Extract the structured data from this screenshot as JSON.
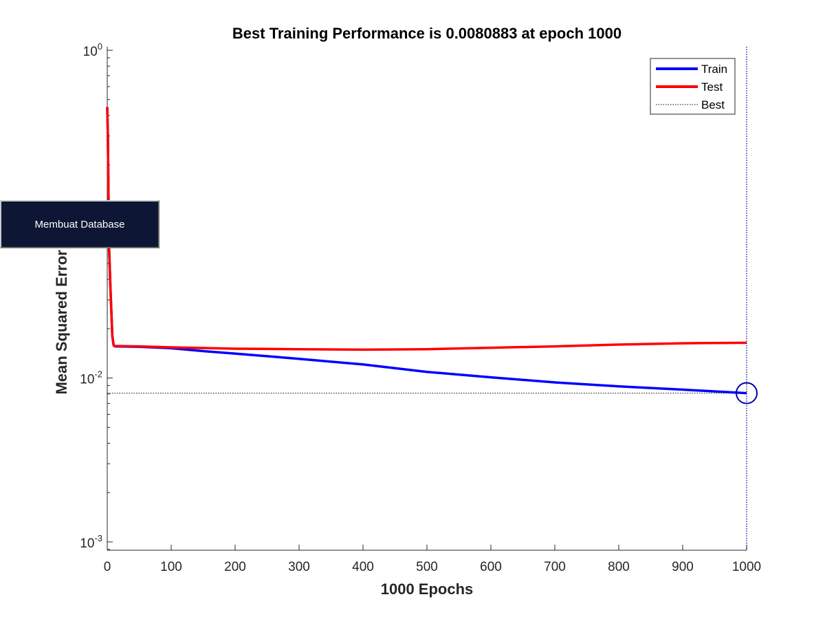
{
  "overlay_button": {
    "label": "Membuat Database"
  },
  "chart_data": {
    "type": "line",
    "title": "Best Training Performance is 0.0080883 at epoch 1000",
    "xlabel": "1000 Epochs",
    "ylabel": "Mean Squared Error (mse)",
    "xlim": [
      0,
      1000
    ],
    "ylim": [
      0.00089,
      1.05
    ],
    "yscale": "log",
    "x_ticks": [
      0,
      100,
      200,
      300,
      400,
      500,
      600,
      700,
      800,
      900,
      1000
    ],
    "y_ticks": [
      {
        "value": 1,
        "base": "10",
        "exp": "0"
      },
      {
        "value": 0.01,
        "base": "10",
        "exp": "-2"
      },
      {
        "value": 0.001,
        "base": "10",
        "exp": "-3"
      }
    ],
    "grid": false,
    "legend_position": "top-right",
    "series": [
      {
        "name": "Train",
        "color": "#0000ff",
        "style": "solid",
        "x": [
          0,
          1,
          2,
          3,
          5,
          8,
          10,
          12,
          50,
          100,
          150,
          200,
          300,
          400,
          500,
          600,
          700,
          800,
          900,
          1000
        ],
        "y": [
          0.45,
          0.3,
          0.12,
          0.06,
          0.035,
          0.018,
          0.0158,
          0.0156,
          0.0155,
          0.0152,
          0.0146,
          0.0141,
          0.0131,
          0.0121,
          0.0109,
          0.0101,
          0.0094,
          0.0089,
          0.0085,
          0.0080883
        ]
      },
      {
        "name": "Test",
        "color": "#ff0000",
        "style": "solid",
        "x": [
          0,
          1,
          2,
          3,
          5,
          8,
          10,
          12,
          50,
          100,
          200,
          300,
          400,
          500,
          600,
          700,
          800,
          900,
          1000
        ],
        "y": [
          0.45,
          0.3,
          0.12,
          0.06,
          0.035,
          0.018,
          0.0158,
          0.0157,
          0.0156,
          0.0154,
          0.0151,
          0.015,
          0.0149,
          0.015,
          0.0153,
          0.0156,
          0.016,
          0.0163,
          0.0164
        ]
      },
      {
        "name": "Best",
        "color": "#000000",
        "style": "dotted",
        "best_epoch": 1000,
        "best_value": 0.0080883
      }
    ],
    "best_marker": {
      "x": 1000,
      "y": 0.0080883,
      "color": "#0000aa",
      "vertical_line_color": "#0000aa"
    }
  }
}
